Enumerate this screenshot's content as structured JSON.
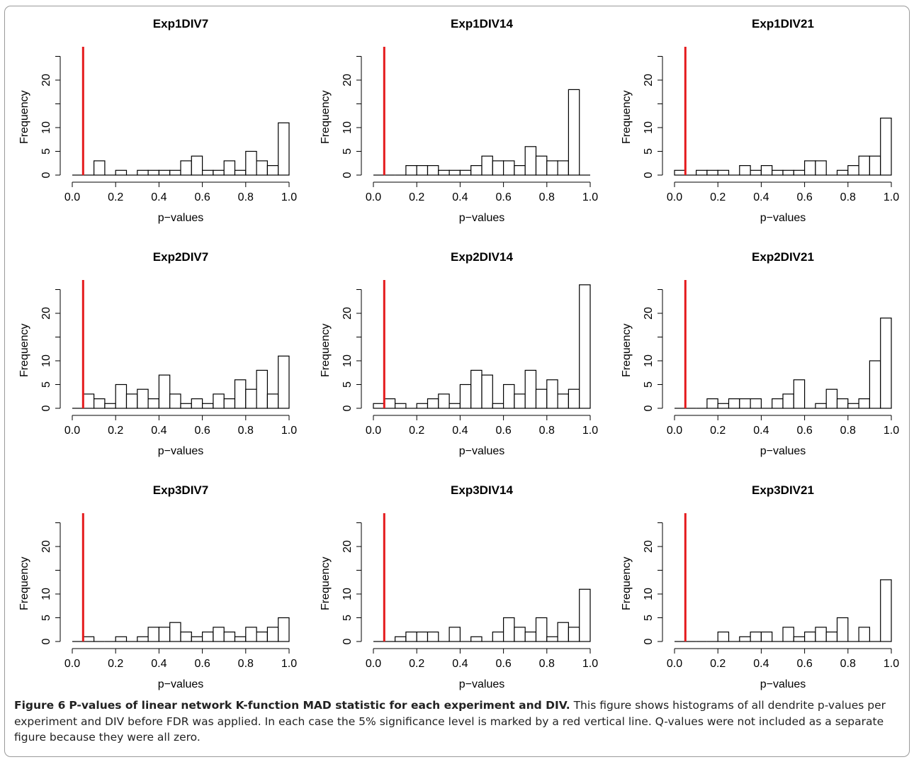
{
  "chart_data": [
    {
      "type": "bar",
      "title": "Exp1DIV7",
      "xlabel": "p−values",
      "ylabel": "Frequency",
      "xlim": [
        0,
        1
      ],
      "ylim": [
        0,
        25
      ],
      "xticks": [
        "0.0",
        "0.2",
        "0.4",
        "0.6",
        "0.8",
        "1.0"
      ],
      "yticks": [
        "0",
        "5",
        "10",
        "20"
      ],
      "bin_width": 0.05,
      "significance_line": 0.05,
      "line_color": "#e41a1c",
      "values": [
        0,
        0,
        3,
        0,
        1,
        0,
        1,
        1,
        1,
        1,
        3,
        4,
        1,
        1,
        3,
        1,
        5,
        3,
        2,
        11
      ]
    },
    {
      "type": "bar",
      "title": "Exp1DIV14",
      "xlabel": "p−values",
      "ylabel": "Frequency",
      "xlim": [
        0,
        1
      ],
      "ylim": [
        0,
        25
      ],
      "xticks": [
        "0.0",
        "0.2",
        "0.4",
        "0.6",
        "0.8",
        "1.0"
      ],
      "yticks": [
        "0",
        "5",
        "10",
        "20"
      ],
      "bin_width": 0.05,
      "significance_line": 0.05,
      "line_color": "#e41a1c",
      "values": [
        0,
        0,
        0,
        2,
        2,
        2,
        1,
        1,
        1,
        2,
        4,
        3,
        3,
        2,
        6,
        4,
        3,
        3,
        18,
        0
      ]
    },
    {
      "type": "bar",
      "title": "Exp1DIV21",
      "xlabel": "p−values",
      "ylabel": "Frequency",
      "xlim": [
        0,
        1
      ],
      "ylim": [
        0,
        25
      ],
      "xticks": [
        "0.0",
        "0.2",
        "0.4",
        "0.6",
        "0.8",
        "1.0"
      ],
      "yticks": [
        "0",
        "5",
        "10",
        "20"
      ],
      "bin_width": 0.05,
      "significance_line": 0.05,
      "line_color": "#e41a1c",
      "values": [
        1,
        0,
        1,
        1,
        1,
        0,
        2,
        1,
        2,
        1,
        1,
        1,
        3,
        3,
        0,
        1,
        2,
        4,
        4,
        12
      ]
    },
    {
      "type": "bar",
      "title": "Exp2DIV7",
      "xlabel": "p−values",
      "ylabel": "Frequency",
      "xlim": [
        0,
        1
      ],
      "ylim": [
        0,
        25
      ],
      "xticks": [
        "0.0",
        "0.2",
        "0.4",
        "0.6",
        "0.8",
        "1.0"
      ],
      "yticks": [
        "0",
        "5",
        "10",
        "20"
      ],
      "bin_width": 0.05,
      "significance_line": 0.05,
      "line_color": "#e41a1c",
      "values": [
        0,
        3,
        2,
        1,
        5,
        3,
        4,
        2,
        7,
        3,
        1,
        2,
        1,
        3,
        2,
        6,
        4,
        8,
        3,
        11
      ]
    },
    {
      "type": "bar",
      "title": "Exp2DIV14",
      "xlabel": "p−values",
      "ylabel": "Frequency",
      "xlim": [
        0,
        1
      ],
      "ylim": [
        0,
        25
      ],
      "xticks": [
        "0.0",
        "0.2",
        "0.4",
        "0.6",
        "0.8",
        "1.0"
      ],
      "yticks": [
        "0",
        "5",
        "10",
        "20"
      ],
      "bin_width": 0.05,
      "significance_line": 0.05,
      "line_color": "#e41a1c",
      "values": [
        1,
        2,
        1,
        0,
        1,
        2,
        3,
        1,
        5,
        8,
        7,
        1,
        5,
        3,
        8,
        4,
        6,
        3,
        4,
        26
      ]
    },
    {
      "type": "bar",
      "title": "Exp2DIV21",
      "xlabel": "p−values",
      "ylabel": "Frequency",
      "xlim": [
        0,
        1
      ],
      "ylim": [
        0,
        25
      ],
      "xticks": [
        "0.0",
        "0.2",
        "0.4",
        "0.6",
        "0.8",
        "1.0"
      ],
      "yticks": [
        "0",
        "5",
        "10",
        "20"
      ],
      "bin_width": 0.05,
      "significance_line": 0.05,
      "line_color": "#e41a1c",
      "values": [
        0,
        0,
        0,
        2,
        1,
        2,
        2,
        2,
        0,
        2,
        3,
        6,
        0,
        1,
        4,
        2,
        1,
        2,
        10,
        19
      ]
    },
    {
      "type": "bar",
      "title": "Exp3DIV7",
      "xlabel": "p−values",
      "ylabel": "Frequency",
      "xlim": [
        0,
        1
      ],
      "ylim": [
        0,
        25
      ],
      "xticks": [
        "0.0",
        "0.2",
        "0.4",
        "0.6",
        "0.8",
        "1.0"
      ],
      "yticks": [
        "0",
        "5",
        "10",
        "20"
      ],
      "bin_width": 0.05,
      "significance_line": 0.05,
      "line_color": "#e41a1c",
      "values": [
        0,
        1,
        0,
        0,
        1,
        0,
        1,
        3,
        3,
        4,
        2,
        1,
        2,
        3,
        2,
        1,
        3,
        2,
        3,
        5
      ]
    },
    {
      "type": "bar",
      "title": "Exp3DIV14",
      "xlabel": "p−values",
      "ylabel": "Frequency",
      "xlim": [
        0,
        1
      ],
      "ylim": [
        0,
        25
      ],
      "xticks": [
        "0.0",
        "0.2",
        "0.4",
        "0.6",
        "0.8",
        "1.0"
      ],
      "yticks": [
        "0",
        "5",
        "10",
        "20"
      ],
      "bin_width": 0.05,
      "significance_line": 0.05,
      "line_color": "#e41a1c",
      "values": [
        0,
        0,
        1,
        2,
        2,
        2,
        0,
        3,
        0,
        1,
        0,
        2,
        5,
        3,
        2,
        5,
        1,
        4,
        3,
        11
      ]
    },
    {
      "type": "bar",
      "title": "Exp3DIV21",
      "xlabel": "p−values",
      "ylabel": "Frequency",
      "xlim": [
        0,
        1
      ],
      "ylim": [
        0,
        25
      ],
      "xticks": [
        "0.0",
        "0.2",
        "0.4",
        "0.6",
        "0.8",
        "1.0"
      ],
      "yticks": [
        "0",
        "5",
        "10",
        "20"
      ],
      "bin_width": 0.05,
      "significance_line": 0.05,
      "line_color": "#e41a1c",
      "values": [
        0,
        0,
        0,
        0,
        2,
        0,
        1,
        2,
        2,
        0,
        3,
        1,
        2,
        3,
        2,
        5,
        0,
        3,
        0,
        13
      ]
    }
  ],
  "caption": {
    "label": "Figure 6",
    "title": "P-values of linear network K-function MAD statistic for each experiment and DIV.",
    "text": "This figure shows histograms of all dendrite p-values per experiment and DIV before FDR was applied. In each case the 5% significance level is marked by a red vertical line. Q-values were not included as a separate figure because they were all zero."
  }
}
